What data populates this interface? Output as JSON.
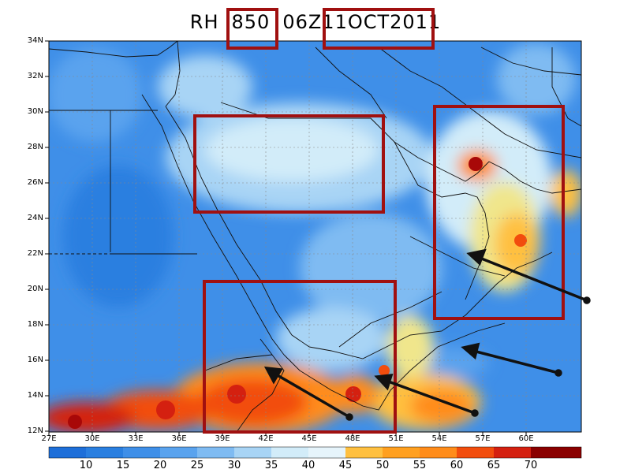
{
  "title": {
    "variable": "RH",
    "level": "850",
    "datetime": "06Z11OCT2011"
  },
  "lat_labels": [
    "34N",
    "32N",
    "30N",
    "28N",
    "26N",
    "24N",
    "22N",
    "20N",
    "18N",
    "16N",
    "14N",
    "12N"
  ],
  "lon_labels": [
    "27E",
    "30E",
    "33E",
    "36E",
    "39E",
    "42E",
    "45E",
    "48E",
    "51E",
    "54E",
    "57E",
    "60E"
  ],
  "colorbar": {
    "labels": [
      "10",
      "15",
      "20",
      "25",
      "30",
      "35",
      "40",
      "45",
      "50",
      "55",
      "60",
      "65",
      "70"
    ],
    "colors": [
      "#1e6fd9",
      "#2a7fe0",
      "#3f8fe8",
      "#5aa3ee",
      "#7fbbf2",
      "#a8d4f5",
      "#d2ecf9",
      "#f0e68c",
      "#ffc040",
      "#ff8c1a",
      "#f24d0d",
      "#d42010",
      "#a80808",
      "#8a0000"
    ]
  },
  "annotation_color": "#a01010",
  "arrow_color": "#111111"
}
